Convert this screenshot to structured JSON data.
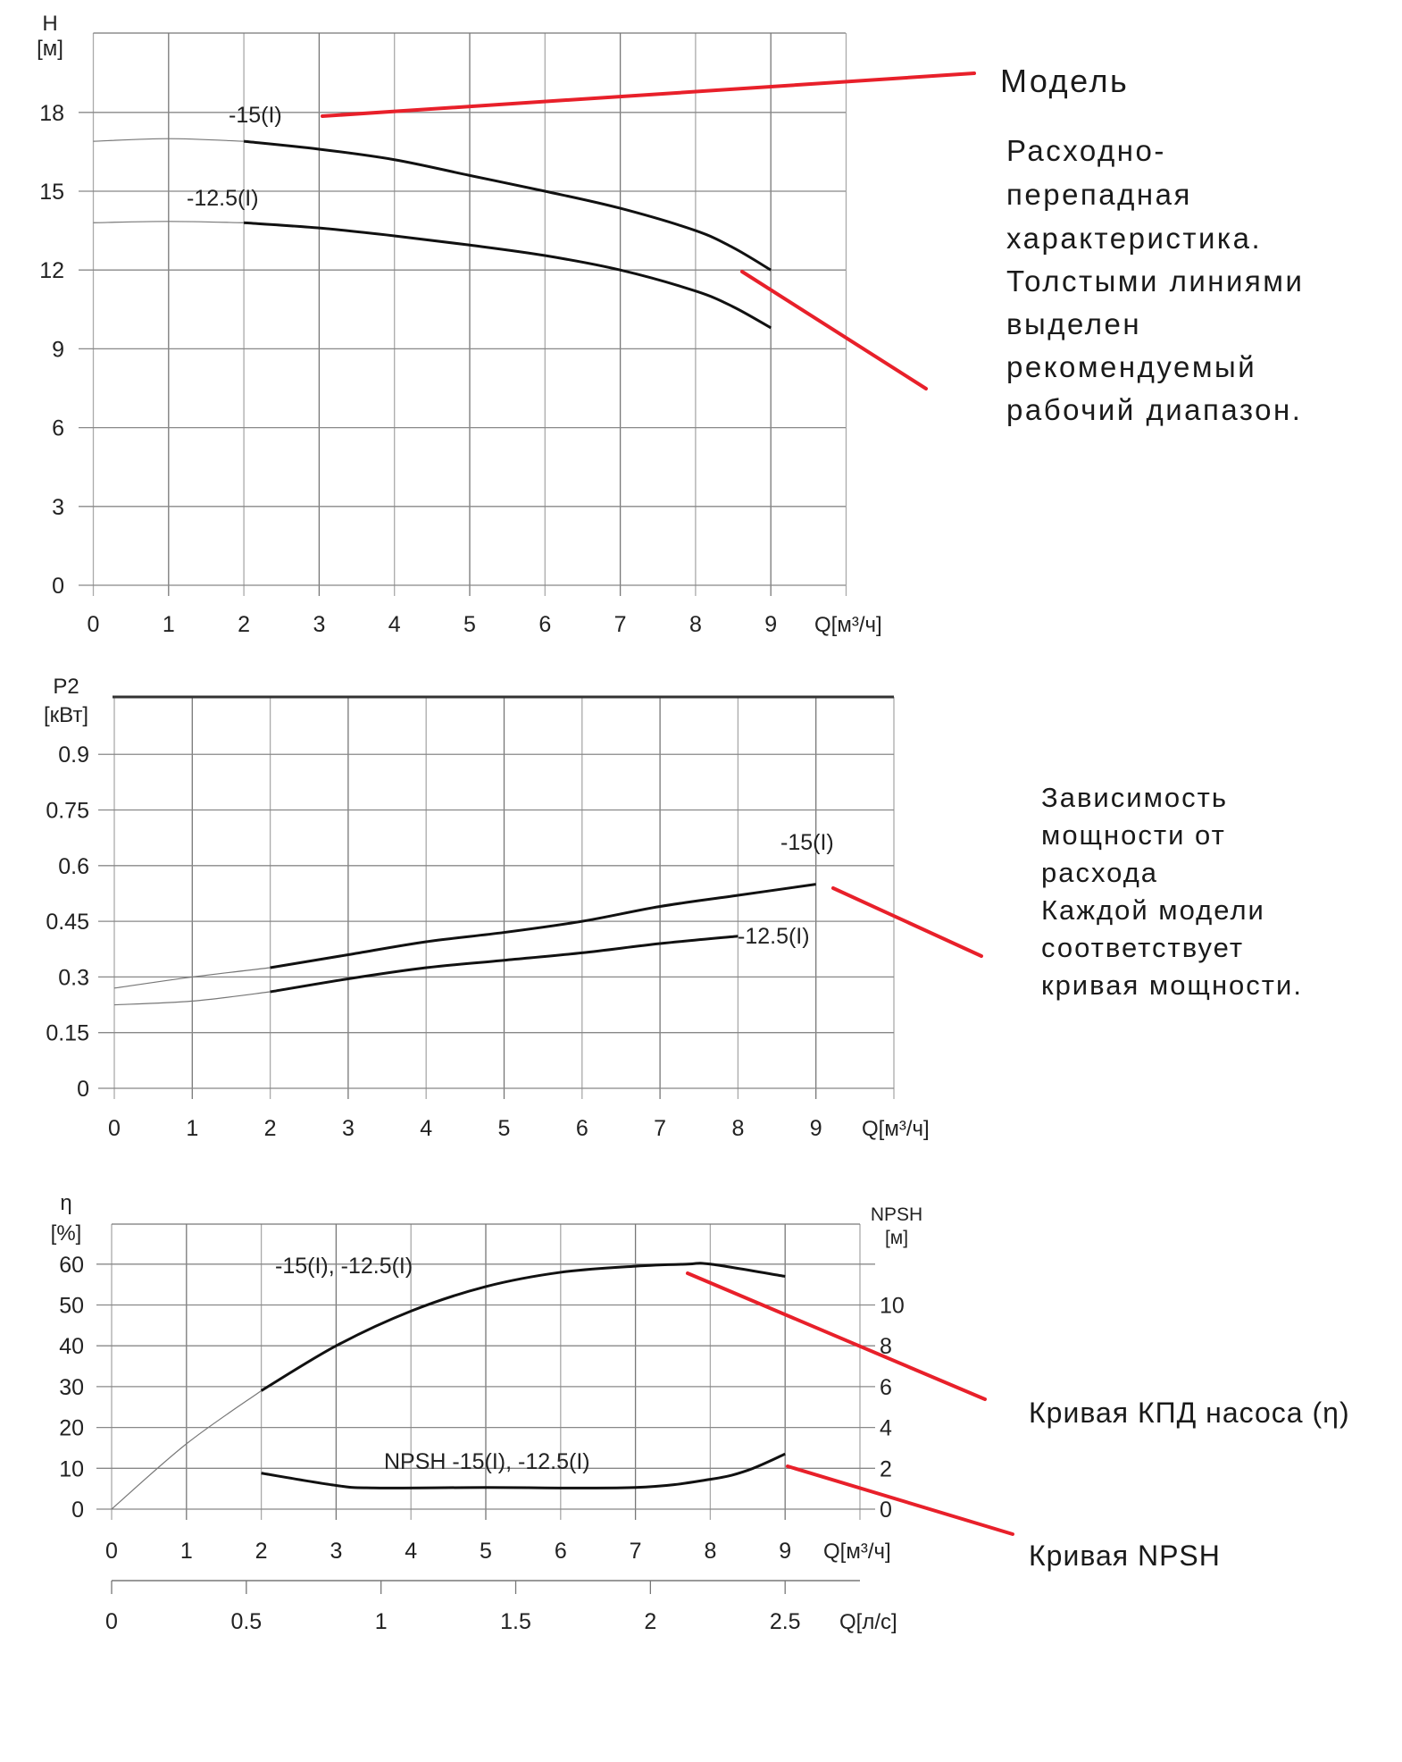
{
  "colors": {
    "annotation_line": "#e8202a",
    "curve": "#111111",
    "grid": "#9a9a9a",
    "text": "#1a1a1a"
  },
  "annotations": {
    "model": "Модель",
    "head_curve": [
      "Расходно-",
      "перепадная",
      "характеристика.",
      "Толстыми линиями",
      "выделен",
      "рекомендуемый",
      "рабочий диапазон."
    ],
    "power_curve": [
      "Зависимость",
      "мощности от",
      "расхода",
      "Каждой модели",
      "соответствует",
      "кривая мощности."
    ],
    "efficiency_curve": "Кривая КПД насоса (η)",
    "npsh_curve": "Кривая NPSH"
  },
  "chart_data": [
    {
      "type": "line",
      "ylabel": "H",
      "yunit": "[м]",
      "xlabel": "Q[м³/ч]",
      "xlim": [
        0,
        10
      ],
      "ylim": [
        0,
        21
      ],
      "xticks": [
        "0",
        "1",
        "2",
        "3",
        "4",
        "5",
        "6",
        "7",
        "8",
        "9"
      ],
      "yticks": [
        "0",
        "3",
        "6",
        "9",
        "12",
        "15",
        "18"
      ],
      "grid": true,
      "recommended_range_from_x": 2,
      "series": [
        {
          "name": "-15(I)",
          "x": [
            0,
            1,
            2,
            3,
            4,
            5,
            6,
            7,
            8,
            8.5,
            9
          ],
          "y": [
            16.9,
            17.0,
            16.9,
            16.6,
            16.2,
            15.6,
            15.0,
            14.35,
            13.5,
            12.85,
            12.0
          ]
        },
        {
          "name": "-12.5(I)",
          "x": [
            0,
            1,
            2,
            3,
            4,
            5,
            6,
            7,
            8,
            8.5,
            9
          ],
          "y": [
            13.8,
            13.85,
            13.8,
            13.6,
            13.3,
            12.95,
            12.55,
            12.0,
            11.2,
            10.6,
            9.8
          ]
        }
      ]
    },
    {
      "type": "line",
      "ylabel": "P2",
      "yunit": "[кВт]",
      "xlabel": "Q[м³/ч]",
      "xlim": [
        0,
        10
      ],
      "ylim": [
        0,
        1.05
      ],
      "xticks": [
        "0",
        "1",
        "2",
        "3",
        "4",
        "5",
        "6",
        "7",
        "8",
        "9"
      ],
      "yticks": [
        "0",
        "0.15",
        "0.3",
        "0.45",
        "0.6",
        "0.75",
        "0.9"
      ],
      "grid": true,
      "recommended_range_from_x": 2,
      "series": [
        {
          "name": "-15(I)",
          "x": [
            0,
            1,
            2,
            3,
            4,
            5,
            6,
            7,
            8,
            9
          ],
          "y": [
            0.27,
            0.3,
            0.325,
            0.36,
            0.395,
            0.42,
            0.45,
            0.49,
            0.52,
            0.55
          ]
        },
        {
          "name": "-12.5(I)",
          "x": [
            0,
            1,
            2,
            3,
            4,
            5,
            6,
            7,
            8
          ],
          "y": [
            0.225,
            0.235,
            0.26,
            0.295,
            0.325,
            0.345,
            0.365,
            0.39,
            0.41
          ]
        }
      ]
    },
    {
      "type": "line",
      "ylabel": "η",
      "yunit": "[%]",
      "y2label": "NPSH",
      "y2unit": "[м]",
      "xlabel": "Q[м³/ч]",
      "x2label": "Q[л/с]",
      "xlim": [
        0,
        10
      ],
      "ylim": [
        0,
        70
      ],
      "y2lim": [
        0,
        14
      ],
      "xticks": [
        "0",
        "1",
        "2",
        "3",
        "4",
        "5",
        "6",
        "7",
        "8",
        "9"
      ],
      "x2ticks": [
        "0",
        "0.5",
        "1",
        "1.5",
        "2",
        "2.5"
      ],
      "yticks": [
        "0",
        "10",
        "20",
        "30",
        "40",
        "50",
        "60"
      ],
      "y2ticks": [
        "0",
        "2",
        "4",
        "6",
        "8",
        "10"
      ],
      "grid": true,
      "recommended_range_from_x": 2,
      "series": [
        {
          "name": "-15(I), -12.5(I)",
          "axis": "left",
          "x": [
            0,
            1,
            2,
            3,
            4,
            5,
            6,
            7,
            7.7,
            8,
            9
          ],
          "y": [
            0,
            16,
            29,
            40,
            48.5,
            54.5,
            58,
            59.5,
            60,
            60,
            57
          ]
        },
        {
          "name": "NPSH -15(I), -12.5(I)",
          "axis": "right",
          "x": [
            2,
            3,
            3.5,
            5,
            7,
            8,
            8.5,
            9
          ],
          "y": [
            1.76,
            1.16,
            1.04,
            1.06,
            1.06,
            1.46,
            1.9,
            2.7
          ]
        }
      ]
    }
  ]
}
